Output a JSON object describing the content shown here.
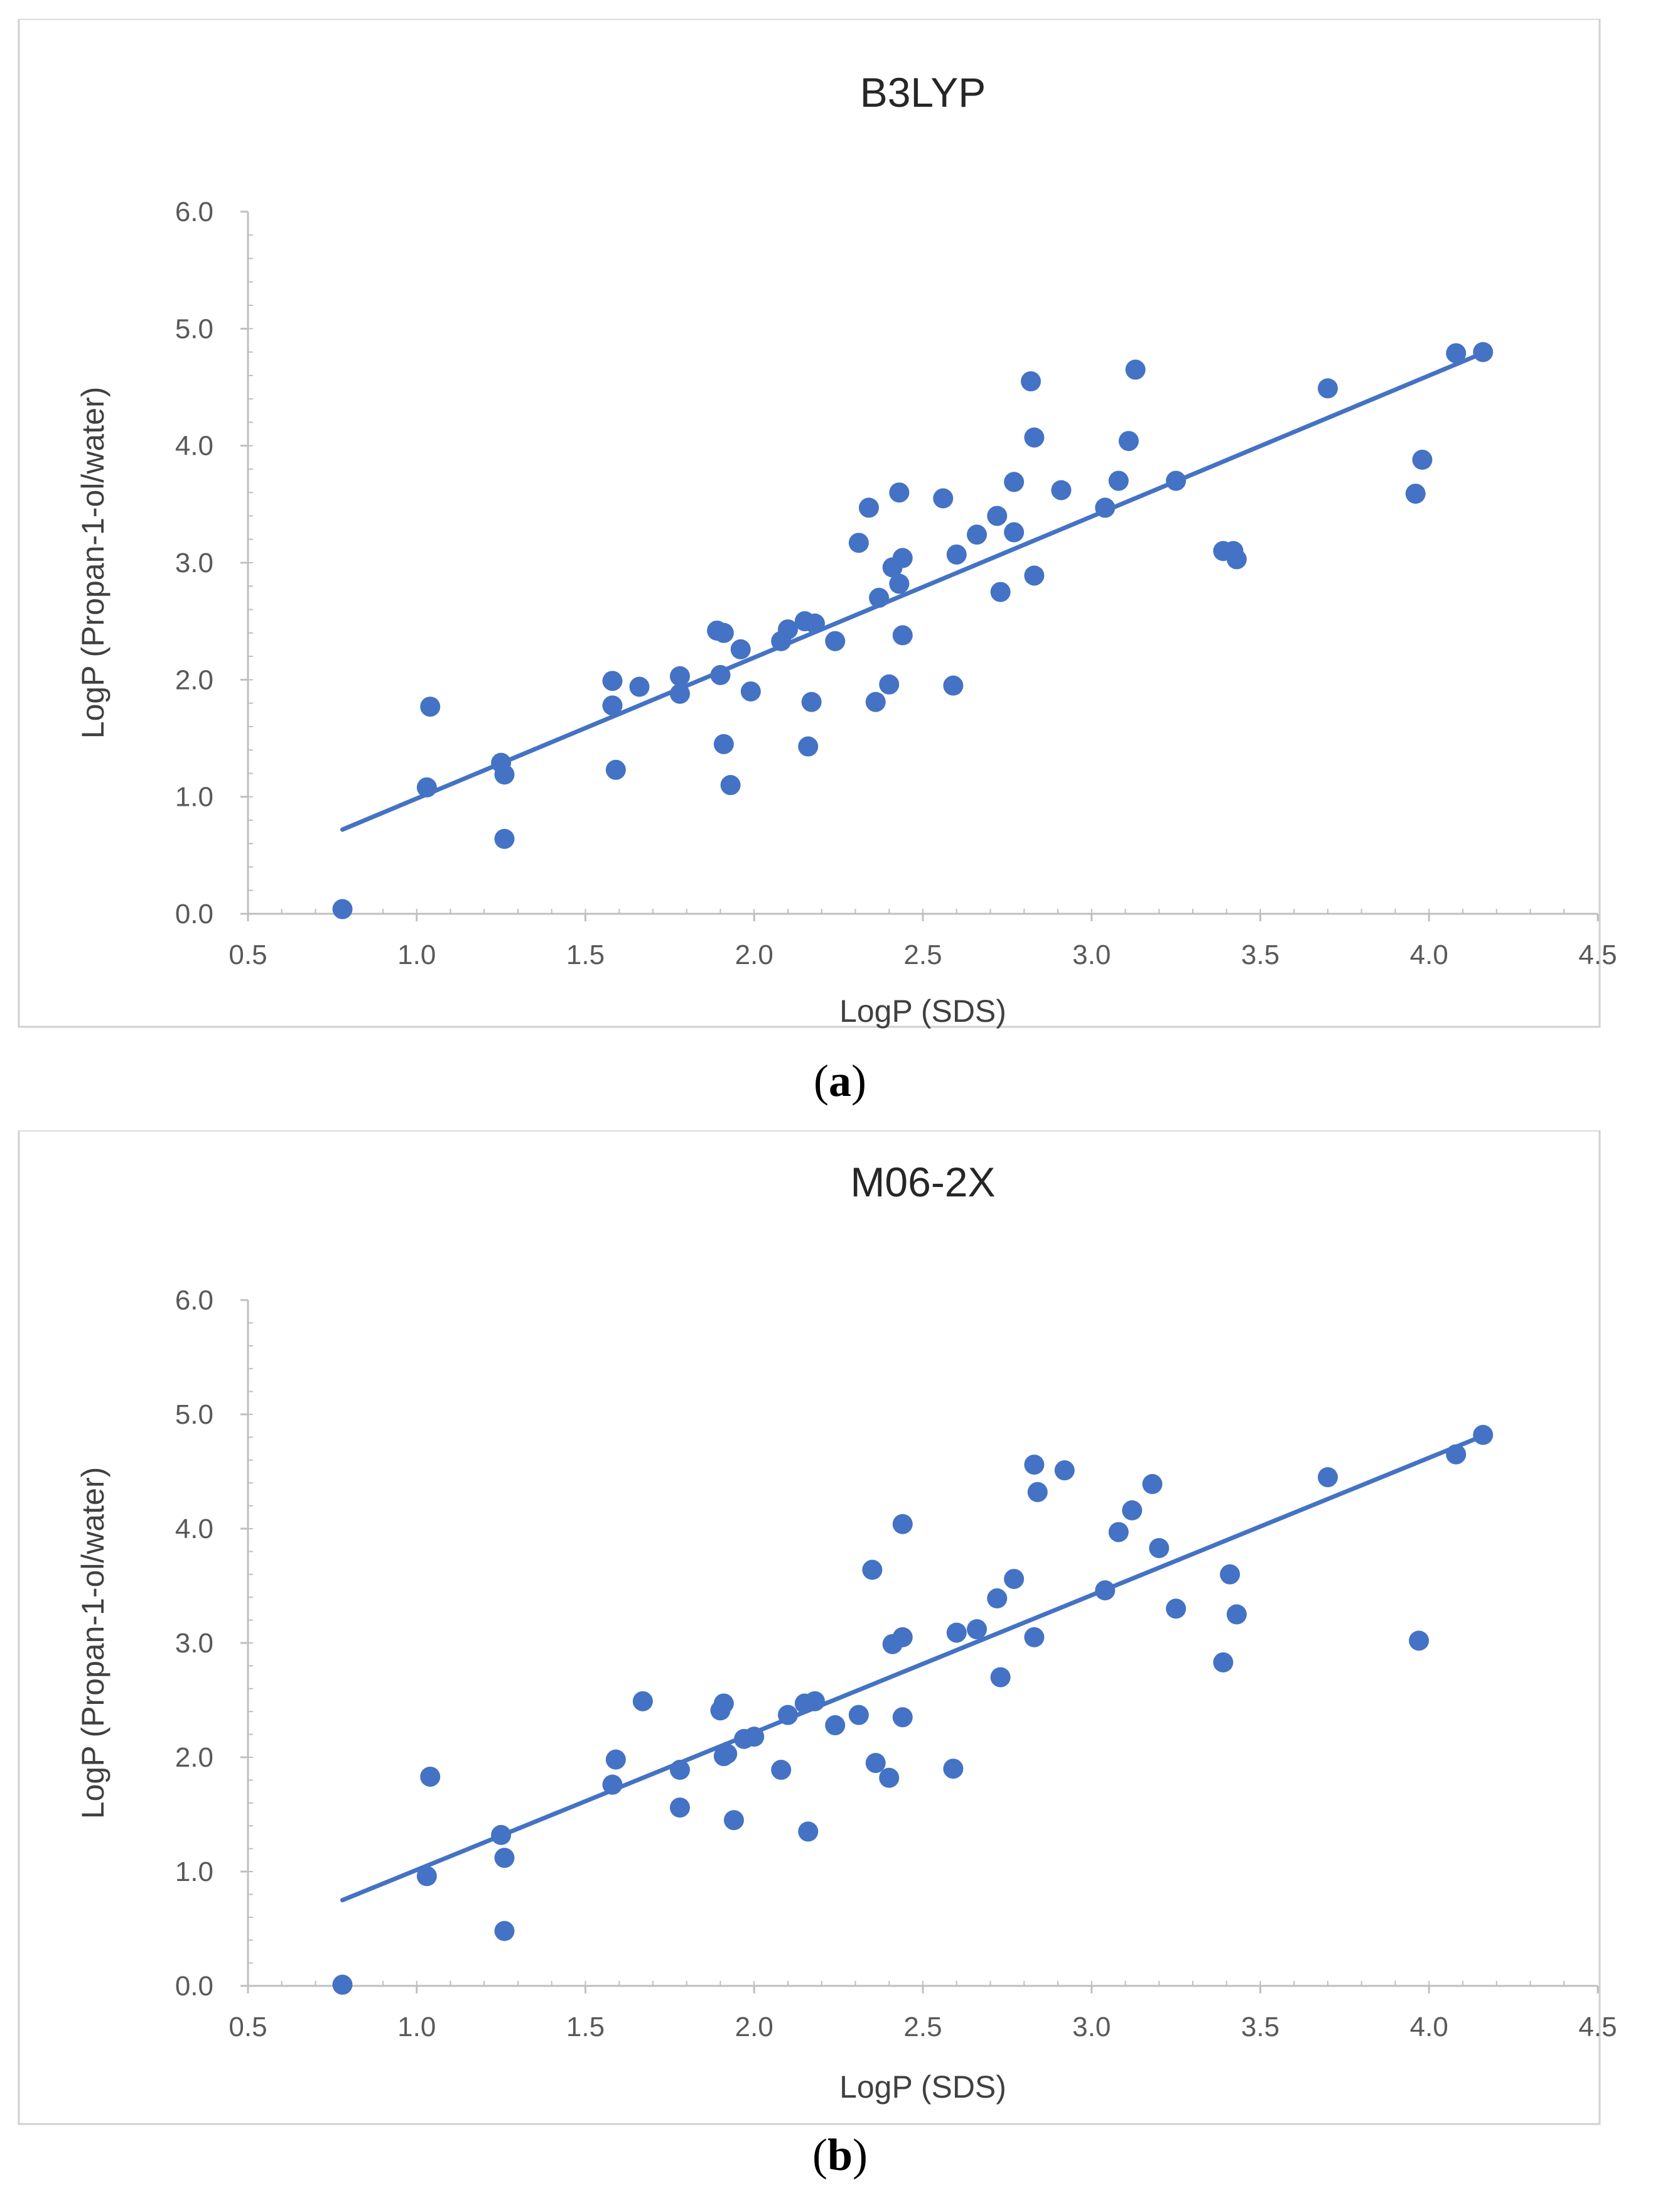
{
  "figure": {
    "panels": [
      {
        "label": "a"
      },
      {
        "label": "b"
      }
    ]
  },
  "chart_data": [
    {
      "type": "scatter",
      "title": "B3LYP",
      "xlabel": "LogP (SDS)",
      "ylabel": "LogP (Propan-1-ol/water)",
      "xlim": [
        0.5,
        4.5
      ],
      "ylim": [
        0.0,
        6.0
      ],
      "xticks": [
        "0.5",
        "1.0",
        "1.5",
        "2.0",
        "2.5",
        "3.0",
        "3.5",
        "4.0",
        "4.5"
      ],
      "yticks": [
        "0.0",
        "1.0",
        "2.0",
        "3.0",
        "4.0",
        "5.0",
        "6.0"
      ],
      "color": "#4472C4",
      "trendline": {
        "x1": 0.78,
        "y1": 0.72,
        "x2": 4.15,
        "y2": 4.78
      },
      "points": [
        [
          0.78,
          0.04
        ],
        [
          1.03,
          1.08
        ],
        [
          1.04,
          1.77
        ],
        [
          1.25,
          1.29
        ],
        [
          1.26,
          1.19
        ],
        [
          1.26,
          0.64
        ],
        [
          1.58,
          1.99
        ],
        [
          1.58,
          1.78
        ],
        [
          1.59,
          1.23
        ],
        [
          1.66,
          1.94
        ],
        [
          1.78,
          2.03
        ],
        [
          1.78,
          1.88
        ],
        [
          1.89,
          2.42
        ],
        [
          1.9,
          2.04
        ],
        [
          1.91,
          2.4
        ],
        [
          1.91,
          1.45
        ],
        [
          1.93,
          1.1
        ],
        [
          1.96,
          2.26
        ],
        [
          1.99,
          1.9
        ],
        [
          2.08,
          2.33
        ],
        [
          2.1,
          2.43
        ],
        [
          2.15,
          2.5
        ],
        [
          2.16,
          1.43
        ],
        [
          2.17,
          1.81
        ],
        [
          2.18,
          2.48
        ],
        [
          2.24,
          2.33
        ],
        [
          2.31,
          3.17
        ],
        [
          2.34,
          3.47
        ],
        [
          2.36,
          1.81
        ],
        [
          2.37,
          2.7
        ],
        [
          2.4,
          1.96
        ],
        [
          2.41,
          2.96
        ],
        [
          2.43,
          2.82
        ],
        [
          2.43,
          3.6
        ],
        [
          2.44,
          3.04
        ],
        [
          2.44,
          2.38
        ],
        [
          2.56,
          3.55
        ],
        [
          2.59,
          1.95
        ],
        [
          2.6,
          3.07
        ],
        [
          2.66,
          3.24
        ],
        [
          2.72,
          3.4
        ],
        [
          2.73,
          2.75
        ],
        [
          2.77,
          3.69
        ],
        [
          2.77,
          3.26
        ],
        [
          2.82,
          4.55
        ],
        [
          2.83,
          2.89
        ],
        [
          2.83,
          4.07
        ],
        [
          2.91,
          3.62
        ],
        [
          3.04,
          3.47
        ],
        [
          3.08,
          3.7
        ],
        [
          3.11,
          4.04
        ],
        [
          3.13,
          4.65
        ],
        [
          3.25,
          3.7
        ],
        [
          3.39,
          3.1
        ],
        [
          3.42,
          3.1
        ],
        [
          3.43,
          3.03
        ],
        [
          3.7,
          4.49
        ],
        [
          3.96,
          3.59
        ],
        [
          3.98,
          3.88
        ],
        [
          4.08,
          4.79
        ],
        [
          4.16,
          4.8
        ]
      ]
    },
    {
      "type": "scatter",
      "title": "M06-2X",
      "xlabel": "LogP (SDS)",
      "ylabel": "LogP (Propan-1-ol/water)",
      "xlim": [
        0.5,
        4.5
      ],
      "ylim": [
        0.0,
        6.0
      ],
      "xticks": [
        "0.5",
        "1.0",
        "1.5",
        "2.0",
        "2.5",
        "3.0",
        "3.5",
        "4.0",
        "4.5"
      ],
      "yticks": [
        "0.0",
        "1.0",
        "2.0",
        "3.0",
        "4.0",
        "5.0",
        "6.0"
      ],
      "color": "#4472C4",
      "trendline": {
        "x1": 0.78,
        "y1": 0.75,
        "x2": 4.15,
        "y2": 4.8
      },
      "points": [
        [
          0.78,
          0.01
        ],
        [
          1.03,
          0.96
        ],
        [
          1.04,
          1.83
        ],
        [
          1.25,
          1.32
        ],
        [
          1.26,
          1.12
        ],
        [
          1.26,
          0.48
        ],
        [
          1.58,
          1.76
        ],
        [
          1.59,
          1.98
        ],
        [
          1.67,
          2.49
        ],
        [
          1.78,
          1.89
        ],
        [
          1.78,
          1.56
        ],
        [
          1.9,
          2.41
        ],
        [
          1.91,
          2.47
        ],
        [
          1.91,
          2.01
        ],
        [
          1.92,
          2.03
        ],
        [
          1.94,
          1.45
        ],
        [
          1.97,
          2.16
        ],
        [
          2.0,
          2.18
        ],
        [
          2.08,
          1.89
        ],
        [
          2.1,
          2.37
        ],
        [
          2.15,
          2.47
        ],
        [
          2.16,
          1.35
        ],
        [
          2.18,
          2.49
        ],
        [
          2.24,
          2.28
        ],
        [
          2.31,
          2.37
        ],
        [
          2.35,
          3.64
        ],
        [
          2.36,
          1.95
        ],
        [
          2.4,
          1.82
        ],
        [
          2.41,
          2.99
        ],
        [
          2.44,
          3.05
        ],
        [
          2.44,
          2.35
        ],
        [
          2.44,
          4.04
        ],
        [
          2.59,
          1.9
        ],
        [
          2.6,
          3.09
        ],
        [
          2.66,
          3.12
        ],
        [
          2.72,
          3.39
        ],
        [
          2.73,
          2.7
        ],
        [
          2.77,
          3.56
        ],
        [
          2.83,
          4.56
        ],
        [
          2.83,
          3.05
        ],
        [
          2.84,
          4.32
        ],
        [
          2.92,
          4.51
        ],
        [
          3.04,
          3.46
        ],
        [
          3.08,
          3.97
        ],
        [
          3.12,
          4.16
        ],
        [
          3.18,
          4.39
        ],
        [
          3.2,
          3.83
        ],
        [
          3.25,
          3.3
        ],
        [
          3.39,
          2.83
        ],
        [
          3.41,
          3.6
        ],
        [
          3.43,
          3.25
        ],
        [
          3.7,
          4.45
        ],
        [
          3.97,
          3.02
        ],
        [
          4.08,
          4.65
        ],
        [
          4.16,
          4.82
        ]
      ]
    }
  ]
}
